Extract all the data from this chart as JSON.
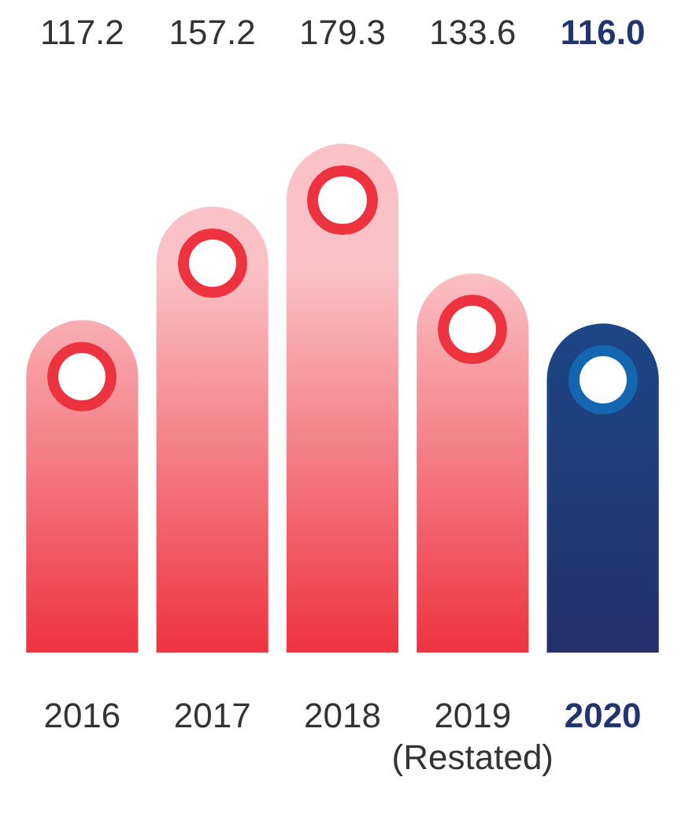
{
  "chart_data": {
    "type": "bar",
    "categories": [
      "2016",
      "2017",
      "2018",
      "2019\n(Restated)",
      "2020"
    ],
    "values": [
      117.2,
      157.2,
      179.3,
      133.6,
      116.0
    ],
    "value_labels": [
      "117.2",
      "157.2",
      "179.3",
      "133.6",
      "116.0"
    ],
    "colors": [
      "#ee3340",
      "#ee3340",
      "#ee3340",
      "#ee3340",
      "#1a4a8c"
    ],
    "grid": false,
    "legend": false
  }
}
